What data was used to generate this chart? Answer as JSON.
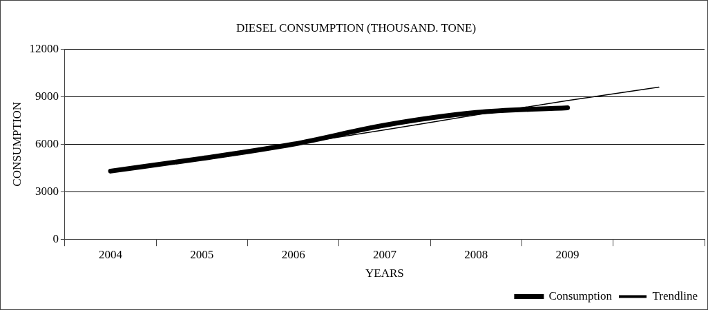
{
  "chart_data": {
    "type": "line",
    "title": "DIESEL CONSUMPTION (THOUSAND. TONE)",
    "xlabel": "YEARS",
    "ylabel": "CONSUMPTION",
    "categories": [
      "2004",
      "2005",
      "2006",
      "2007",
      "2008",
      "2009",
      null
    ],
    "series": [
      {
        "name": "Consumption",
        "color": "#000000",
        "values": [
          4300,
          5100,
          6000,
          7200,
          8000,
          8300,
          null
        ]
      },
      {
        "name": "Trendline",
        "color": "#000000",
        "values": [
          4300,
          5150,
          6000,
          6900,
          7850,
          8750,
          9600
        ]
      }
    ],
    "ylim": [
      0,
      12000
    ],
    "yticks": [
      0,
      3000,
      6000,
      9000,
      12000
    ],
    "grid": "y",
    "legend": "bottom right",
    "marker": "none"
  }
}
